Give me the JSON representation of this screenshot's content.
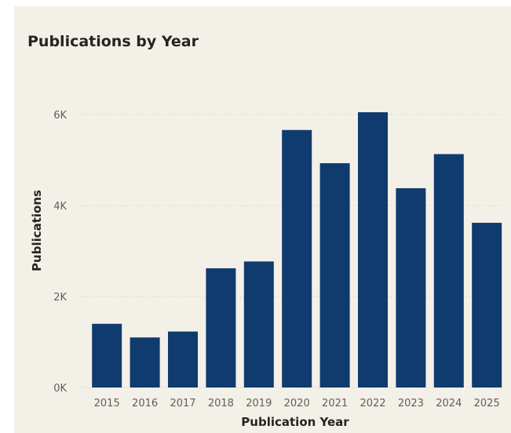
{
  "colors": {
    "background": "#f3f0e8",
    "bar": "#0f3b6e",
    "gridline": "#c8c6c4",
    "tick_text": "#605e5c",
    "title_text": "#252423"
  },
  "chart_data": {
    "type": "bar",
    "title": "Publications by Year",
    "xlabel": "Publication Year",
    "ylabel": "Publications",
    "categories": [
      "2015",
      "2016",
      "2017",
      "2018",
      "2019",
      "2020",
      "2021",
      "2022",
      "2023",
      "2024",
      "2025"
    ],
    "values": [
      1400,
      1100,
      1230,
      2620,
      2770,
      5660,
      4930,
      6050,
      4380,
      5130,
      3620
    ],
    "ylim": [
      0,
      6000
    ],
    "yticks": [
      0,
      2000,
      4000,
      6000
    ],
    "ytick_labels": [
      "0K",
      "2K",
      "4K",
      "6K"
    ],
    "grid": true,
    "grid_style": "dotted",
    "legend": "none"
  }
}
